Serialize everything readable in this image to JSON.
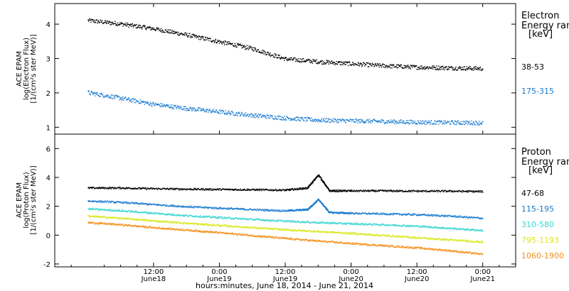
{
  "x_axis": {
    "label": "hours:minutes, June 18, 2014 - June 21, 2014",
    "range_hours": [
      -6,
      78
    ],
    "ticks": [
      {
        "h": 12,
        "time": "12:00",
        "day": "June18"
      },
      {
        "h": 24,
        "time": "0:00",
        "day": "June19"
      },
      {
        "h": 36,
        "time": "12:00",
        "day": "June19"
      },
      {
        "h": 48,
        "time": "0:00",
        "day": "June20"
      },
      {
        "h": 60,
        "time": "12:00",
        "day": "June20"
      },
      {
        "h": 72,
        "time": "0:00",
        "day": "June21"
      }
    ]
  },
  "chart_data": [
    {
      "type": "scatter",
      "panel": "top",
      "ylabel_lines": [
        "ACE EPAM",
        "log(Electron Flux)",
        "[1/(cm²s ster MeV)]"
      ],
      "ylim": [
        0.8,
        4.6
      ],
      "yticks": [
        1,
        2,
        3,
        4
      ],
      "legend_title": [
        "Electron",
        "Energy ran",
        "[keV]"
      ],
      "series": [
        {
          "name": "38-53",
          "color": "#000000",
          "x": [
            0,
            6,
            12,
            18,
            24,
            30,
            36,
            42,
            48,
            54,
            60,
            66,
            72
          ],
          "y": [
            4.12,
            4.02,
            3.88,
            3.7,
            3.5,
            3.3,
            3.0,
            2.92,
            2.86,
            2.8,
            2.76,
            2.74,
            2.72
          ]
        },
        {
          "name": "175-315",
          "color": "#1a7bd0",
          "x": [
            0,
            6,
            12,
            18,
            24,
            30,
            36,
            42,
            48,
            54,
            60,
            66,
            72
          ],
          "y": [
            2.02,
            1.86,
            1.68,
            1.56,
            1.46,
            1.36,
            1.28,
            1.22,
            1.2,
            1.18,
            1.16,
            1.15,
            1.14
          ]
        }
      ]
    },
    {
      "type": "scatter",
      "panel": "bottom",
      "ylabel_lines": [
        "ACE EPAM",
        "log(Proton Flux)",
        "[1/(cm²s ster MeV)]"
      ],
      "ylim": [
        -2.2,
        7.0
      ],
      "yticks": [
        -2,
        0,
        2,
        4,
        6
      ],
      "legend_title": [
        "Proton",
        "Energy ran",
        "[keV]"
      ],
      "series": [
        {
          "name": "47-68",
          "color": "#000000",
          "x": [
            0,
            6,
            12,
            18,
            24,
            30,
            36,
            40,
            42,
            44,
            48,
            54,
            60,
            66,
            72
          ],
          "y": [
            3.3,
            3.3,
            3.25,
            3.22,
            3.2,
            3.18,
            3.15,
            3.3,
            4.2,
            3.1,
            3.1,
            3.1,
            3.08,
            3.08,
            3.05
          ]
        },
        {
          "name": "115-195",
          "color": "#1a7bd0",
          "x": [
            0,
            6,
            12,
            18,
            24,
            30,
            36,
            40,
            42,
            44,
            48,
            54,
            60,
            66,
            72
          ],
          "y": [
            2.4,
            2.3,
            2.15,
            2.0,
            1.9,
            1.8,
            1.72,
            1.8,
            2.5,
            1.6,
            1.55,
            1.5,
            1.45,
            1.35,
            1.2
          ]
        },
        {
          "name": "310-580",
          "color": "#3ad6d0",
          "x": [
            0,
            6,
            12,
            18,
            24,
            30,
            36,
            42,
            48,
            54,
            60,
            66,
            72
          ],
          "y": [
            1.85,
            1.72,
            1.55,
            1.38,
            1.25,
            1.12,
            1.0,
            0.9,
            0.82,
            0.75,
            0.65,
            0.5,
            0.35
          ]
        },
        {
          "name": "795-1193",
          "color": "#d8e81a",
          "x": [
            0,
            6,
            12,
            18,
            24,
            30,
            36,
            42,
            48,
            54,
            60,
            66,
            72
          ],
          "y": [
            1.35,
            1.2,
            1.02,
            0.85,
            0.7,
            0.55,
            0.4,
            0.28,
            0.15,
            0.0,
            -0.15,
            -0.3,
            -0.45
          ]
        },
        {
          "name": "1060-1900",
          "color": "#f39018",
          "x": [
            0,
            6,
            12,
            18,
            24,
            30,
            36,
            42,
            48,
            54,
            60,
            66,
            72
          ],
          "y": [
            0.9,
            0.75,
            0.55,
            0.38,
            0.2,
            0.0,
            -0.2,
            -0.38,
            -0.55,
            -0.7,
            -0.85,
            -1.05,
            -1.3
          ]
        }
      ]
    }
  ]
}
